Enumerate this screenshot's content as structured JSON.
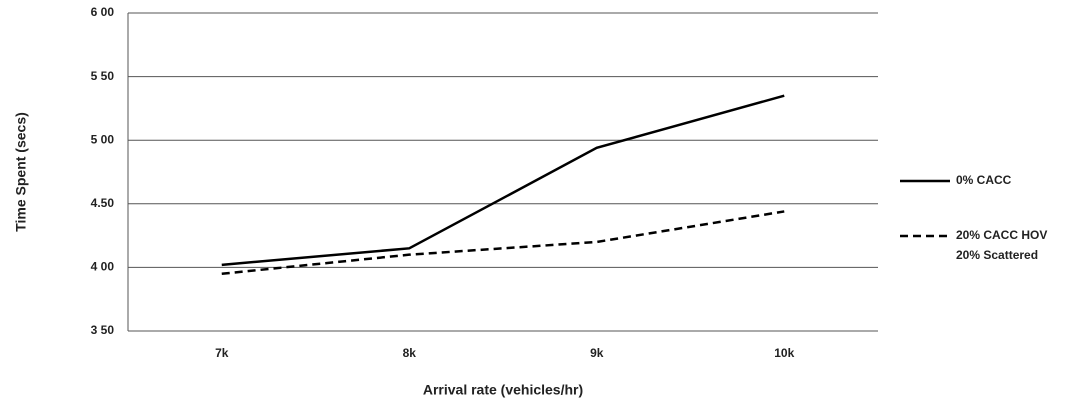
{
  "chart_data": {
    "type": "line",
    "x_label": "Arrival rate (vehicles/hr)",
    "y_label": "Time Spent (secs)",
    "categories": [
      "7k",
      "8k",
      "9k",
      "10k"
    ],
    "series": [
      {
        "name": "0% CACC",
        "color": "#000000",
        "values": [
          4.02,
          4.15,
          4.94,
          5.35
        ]
      },
      {
        "name": "20% CACC HOV",
        "color": "#000000",
        "dashed": true,
        "values": [
          3.95,
          4.1,
          4.2,
          4.44
        ]
      },
      {
        "name": "20% Scattered",
        "values": [
          null,
          null,
          null,
          null
        ]
      }
    ],
    "ylim": [
      3.5,
      6.0
    ],
    "yticks": [
      {
        "value": 3.5,
        "label": "3 50"
      },
      {
        "value": 4.0,
        "label": "4 00"
      },
      {
        "value": 4.5,
        "label": "4.50"
      },
      {
        "value": 5.0,
        "label": "5 00"
      },
      {
        "value": 5.5,
        "label": "5 50"
      },
      {
        "value": 6.0,
        "label": "6 00"
      }
    ],
    "grid": true,
    "legend": "right"
  }
}
